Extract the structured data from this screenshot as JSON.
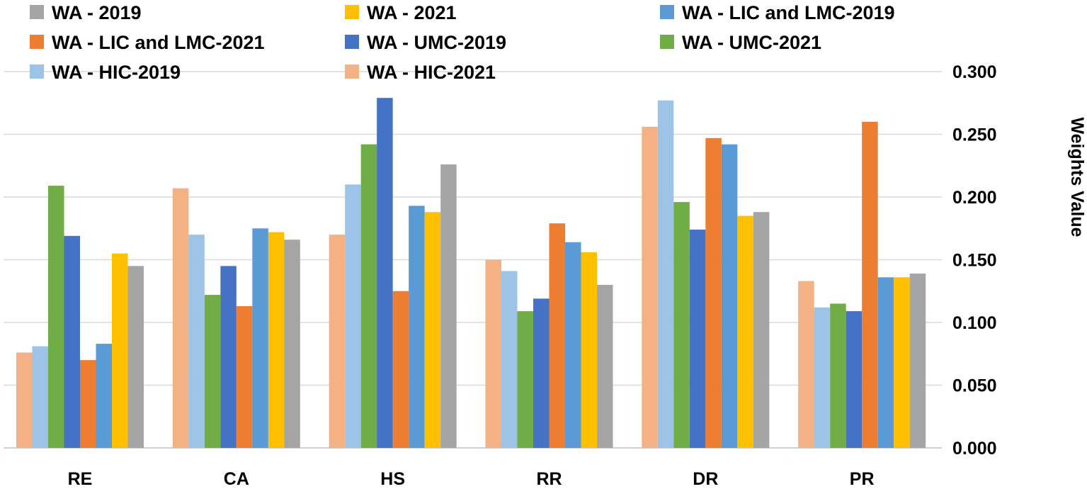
{
  "chart_data": {
    "type": "bar",
    "title": "",
    "xlabel": "",
    "ylabel": "Weights Value",
    "ylim": [
      0,
      0.3
    ],
    "yticks": [
      "0.000",
      "0.050",
      "0.100",
      "0.150",
      "0.200",
      "0.250",
      "0.300"
    ],
    "y_axis_position": "right",
    "grid": true,
    "legend_position": "top",
    "categories": [
      "RE",
      "CA",
      "HS",
      "RR",
      "DR",
      "PR"
    ],
    "legend": [
      {
        "name": "WA - 2019",
        "color": "#A5A5A5"
      },
      {
        "name": "WA - 2021",
        "color": "#FFC000"
      },
      {
        "name": "WA - LIC and LMC-2019",
        "color": "#5B9BD5"
      },
      {
        "name": "WA - LIC and LMC-2021",
        "color": "#ED7D31"
      },
      {
        "name": "WA - UMC-2019",
        "color": "#4472C4"
      },
      {
        "name": "WA - UMC-2021",
        "color": "#70AD47"
      },
      {
        "name": "WA - HIC-2019",
        "color": "#9DC3E6"
      },
      {
        "name": "WA - HIC-2021",
        "color": "#F4B183"
      }
    ],
    "series": [
      {
        "name": "WA - HIC-2021",
        "color": "#F4B183",
        "values": [
          0.076,
          0.207,
          0.17,
          0.15,
          0.256,
          0.133
        ]
      },
      {
        "name": "WA - HIC-2019",
        "color": "#9DC3E6",
        "values": [
          0.081,
          0.17,
          0.21,
          0.141,
          0.277,
          0.112
        ]
      },
      {
        "name": "WA - UMC-2021",
        "color": "#70AD47",
        "values": [
          0.209,
          0.122,
          0.242,
          0.109,
          0.196,
          0.115
        ]
      },
      {
        "name": "WA - UMC-2019",
        "color": "#4472C4",
        "values": [
          0.169,
          0.145,
          0.279,
          0.119,
          0.174,
          0.109
        ]
      },
      {
        "name": "WA - LIC and LMC-2021",
        "color": "#ED7D31",
        "values": [
          0.07,
          0.113,
          0.125,
          0.179,
          0.247,
          0.26
        ]
      },
      {
        "name": "WA - LIC and LMC-2019",
        "color": "#5B9BD5",
        "values": [
          0.083,
          0.175,
          0.193,
          0.164,
          0.242,
          0.136
        ]
      },
      {
        "name": "WA - 2021",
        "color": "#FFC000",
        "values": [
          0.155,
          0.172,
          0.188,
          0.156,
          0.185,
          0.136
        ]
      },
      {
        "name": "WA - 2019",
        "color": "#A5A5A5",
        "values": [
          0.145,
          0.166,
          0.226,
          0.13,
          0.188,
          0.139
        ]
      }
    ]
  }
}
